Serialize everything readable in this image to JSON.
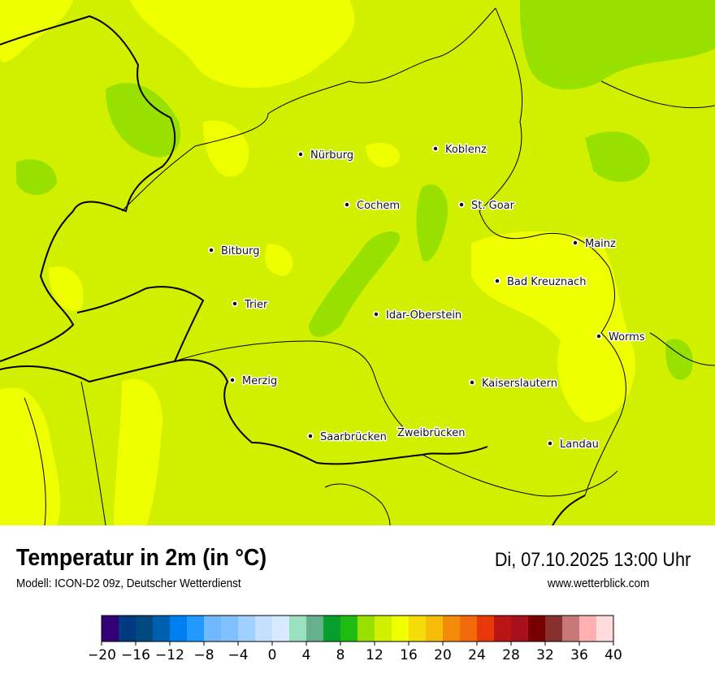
{
  "header": {
    "title": "Temperatur in 2m (in °C)",
    "subtitle": "Modell: ICON-D2 09z, Deutscher Wetterdienst",
    "datetime": "Di, 07.10.2025 13:00 Uhr",
    "website": "www.wetterblick.com"
  },
  "map": {
    "base_color": "#d0f000",
    "warm_color": "#f0ff00",
    "cool_color": "#98e000",
    "cities": [
      {
        "name": "Nürburg"
      },
      {
        "name": "Koblenz"
      },
      {
        "name": "Cochem"
      },
      {
        "name": "St. Goar"
      },
      {
        "name": "Mainz"
      },
      {
        "name": "Bitburg"
      },
      {
        "name": "Bad Kreuznach"
      },
      {
        "name": "Trier"
      },
      {
        "name": "Idar-Oberstein"
      },
      {
        "name": "Worms"
      },
      {
        "name": "Merzig"
      },
      {
        "name": "Kaiserslautern"
      },
      {
        "name": "Saarbrücken"
      },
      {
        "name": "Zweibrücken"
      },
      {
        "name": "Landau"
      }
    ]
  },
  "legend": {
    "min": -20,
    "max": 40,
    "step": 2,
    "ticks": [
      "−20",
      "−16",
      "−12",
      "−8",
      "−4",
      "0",
      "4",
      "8",
      "12",
      "16",
      "20",
      "24",
      "28",
      "32",
      "36",
      "40"
    ],
    "colors": [
      "#330077",
      "#003a80",
      "#004a80",
      "#0060b0",
      "#0080f0",
      "#2299ff",
      "#70b8ff",
      "#80c0ff",
      "#a0d0ff",
      "#c4e0ff",
      "#d8eaff",
      "#98e0c0",
      "#66b08c",
      "#08a02c",
      "#20bb10",
      "#98e000",
      "#d0f000",
      "#f0ff00",
      "#f5dc08",
      "#f5bc0a",
      "#f28a0a",
      "#f26a0a",
      "#e8380a",
      "#bb1414",
      "#a8101c",
      "#780000",
      "#883030",
      "#c87878",
      "#ffb0b0",
      "#ffdcdc"
    ]
  }
}
